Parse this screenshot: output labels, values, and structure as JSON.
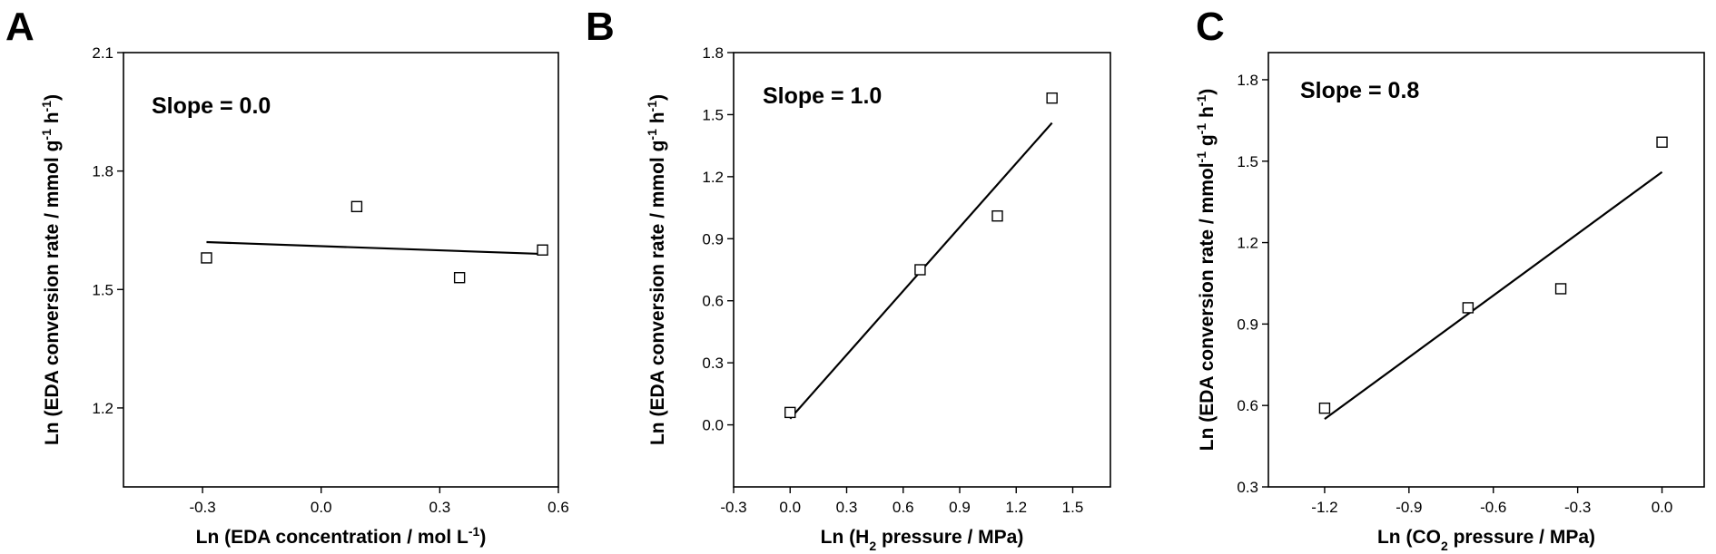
{
  "chart_data": [
    {
      "type": "scatter",
      "panel_label": "A",
      "xlabel": "Ln (EDA concentration / mol L-1)",
      "xlabel_parts": [
        {
          "t": "Ln (EDA concentration / mol L"
        },
        {
          "t": "-1",
          "s": "sup"
        },
        {
          "t": ")"
        }
      ],
      "ylabel": "Ln (EDA conversion rate / mmol g-1 h-1)",
      "ylabel_parts": [
        {
          "t": "Ln (EDA conversion rate / mmol g"
        },
        {
          "t": "-1",
          "s": "sup"
        },
        {
          "t": " h"
        },
        {
          "t": "-1",
          "s": "sup"
        },
        {
          "t": ")"
        }
      ],
      "xlim": [
        -0.5,
        0.6
      ],
      "ylim": [
        1.0,
        2.1
      ],
      "xticks": [
        -0.3,
        0.0,
        0.3,
        0.6
      ],
      "xtick_labels": [
        "-0.3",
        "0.0",
        "0.3",
        "0.6"
      ],
      "yticks": [
        1.2,
        1.5,
        1.8,
        2.1
      ],
      "ytick_labels": [
        "1.2",
        "1.5",
        "1.8",
        "2.1"
      ],
      "series": [
        {
          "x": [
            -0.29,
            0.09,
            0.35,
            0.56
          ],
          "y": [
            1.58,
            1.71,
            1.53,
            1.6
          ]
        }
      ],
      "fit_line": {
        "x": [
          -0.29,
          0.56
        ],
        "y": [
          1.62,
          1.59
        ]
      },
      "annotation": "Slope = 0.0",
      "grid": false
    },
    {
      "type": "scatter",
      "panel_label": "B",
      "xlabel": "Ln (H2 pressure / MPa)",
      "xlabel_parts": [
        {
          "t": "Ln (H"
        },
        {
          "t": "2",
          "s": "sub"
        },
        {
          "t": " pressure / MPa)"
        }
      ],
      "ylabel": "Ln (EDA conversion rate / mmol g-1 h-1)",
      "ylabel_parts": [
        {
          "t": "Ln (EDA conversion rate / mmol g"
        },
        {
          "t": "-1",
          "s": "sup"
        },
        {
          "t": " h"
        },
        {
          "t": "-1",
          "s": "sup"
        },
        {
          "t": ")"
        }
      ],
      "xlim": [
        -0.3,
        1.7
      ],
      "ylim": [
        -0.3,
        1.8
      ],
      "xticks": [
        -0.3,
        0.0,
        0.3,
        0.6,
        0.9,
        1.2,
        1.5
      ],
      "xtick_labels": [
        "-0.3",
        "0.0",
        "0.3",
        "0.6",
        "0.9",
        "1.2",
        "1.5"
      ],
      "yticks": [
        0.0,
        0.3,
        0.6,
        0.9,
        1.2,
        1.5,
        1.8
      ],
      "ytick_labels": [
        "0.0",
        "0.3",
        "0.6",
        "0.9",
        "1.2",
        "1.5",
        "1.8"
      ],
      "series": [
        {
          "x": [
            0.0,
            0.69,
            1.1,
            1.39
          ],
          "y": [
            0.06,
            0.75,
            1.01,
            1.58
          ]
        }
      ],
      "fit_line": {
        "x": [
          0.0,
          1.39
        ],
        "y": [
          0.03,
          1.46
        ]
      },
      "annotation": "Slope = 1.0",
      "grid": false
    },
    {
      "type": "scatter",
      "panel_label": "C",
      "xlabel": "Ln (CO2 pressure / MPa)",
      "xlabel_parts": [
        {
          "t": "Ln (CO"
        },
        {
          "t": "2",
          "s": "sub"
        },
        {
          "t": " pressure / MPa)"
        }
      ],
      "ylabel": "Ln (EDA conversion rate / mmol-1 g-1 h-1)",
      "ylabel_parts": [
        {
          "t": "Ln (EDA conversion rate / mmol"
        },
        {
          "t": "-1",
          "s": "sup"
        },
        {
          "t": " g"
        },
        {
          "t": "-1",
          "s": "sup"
        },
        {
          "t": " h"
        },
        {
          "t": "-1",
          "s": "sup"
        },
        {
          "t": ")"
        }
      ],
      "xlim": [
        -1.4,
        0.15
      ],
      "ylim": [
        0.3,
        1.9
      ],
      "xticks": [
        -1.2,
        -0.9,
        -0.6,
        -0.3,
        0.0
      ],
      "xtick_labels": [
        "-1.2",
        "-0.9",
        "-0.6",
        "-0.3",
        "0.0"
      ],
      "yticks": [
        0.3,
        0.6,
        0.9,
        1.2,
        1.5,
        1.8
      ],
      "ytick_labels": [
        "0.3",
        "0.6",
        "0.9",
        "1.2",
        "1.5",
        "1.8"
      ],
      "series": [
        {
          "x": [
            -1.2,
            -0.69,
            -0.36,
            0.0
          ],
          "y": [
            0.59,
            0.96,
            1.03,
            1.57
          ]
        }
      ],
      "fit_line": {
        "x": [
          -1.2,
          0.0
        ],
        "y": [
          0.55,
          1.46
        ]
      },
      "annotation": "Slope = 0.8",
      "grid": false
    }
  ]
}
